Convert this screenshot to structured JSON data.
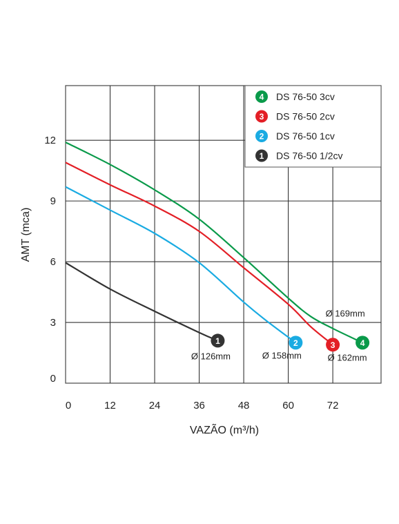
{
  "chart_data": {
    "type": "line",
    "xlabel": "VAZÃO (m³/h)",
    "ylabel": "AMT (mca)",
    "x_ticks": [
      0,
      12,
      24,
      36,
      48,
      60,
      72
    ],
    "y_ticks": [
      0,
      3,
      6,
      9,
      12
    ],
    "xlim": [
      0,
      85
    ],
    "ylim": [
      0,
      14.7
    ],
    "grid": true,
    "legend_position": "top-right",
    "series": [
      {
        "id": "4",
        "name": "DS 76-50 3cv",
        "color": "#0a9a4a",
        "diameter_label": "Ø 169mm",
        "points": [
          [
            0,
            11.9
          ],
          [
            12,
            10.8
          ],
          [
            24,
            9.55
          ],
          [
            36,
            8.1
          ],
          [
            48,
            6.2
          ],
          [
            60,
            4.2
          ],
          [
            66,
            3.3
          ],
          [
            72,
            2.7
          ],
          [
            80,
            2.0
          ]
        ]
      },
      {
        "id": "3",
        "name": "DS 76-50 2cv",
        "color": "#e31f26",
        "diameter_label": "Ø 162mm",
        "points": [
          [
            0,
            10.9
          ],
          [
            12,
            9.8
          ],
          [
            24,
            8.75
          ],
          [
            36,
            7.5
          ],
          [
            48,
            5.7
          ],
          [
            60,
            3.9
          ],
          [
            66,
            2.8
          ],
          [
            72,
            1.9
          ]
        ]
      },
      {
        "id": "2",
        "name": "DS 76-50 1cv",
        "color": "#1aabe2",
        "diameter_label": "Ø 158mm",
        "points": [
          [
            0,
            9.7
          ],
          [
            12,
            8.55
          ],
          [
            24,
            7.4
          ],
          [
            36,
            5.95
          ],
          [
            48,
            4.0
          ],
          [
            54,
            3.1
          ],
          [
            62,
            2.0
          ]
        ]
      },
      {
        "id": "1",
        "name": "DS 76-50 1/2cv",
        "color": "#333333",
        "diameter_label": "Ø 126mm",
        "points": [
          [
            0,
            5.95
          ],
          [
            12,
            4.65
          ],
          [
            24,
            3.55
          ],
          [
            36,
            2.5
          ],
          [
            41,
            2.1
          ]
        ]
      }
    ]
  }
}
